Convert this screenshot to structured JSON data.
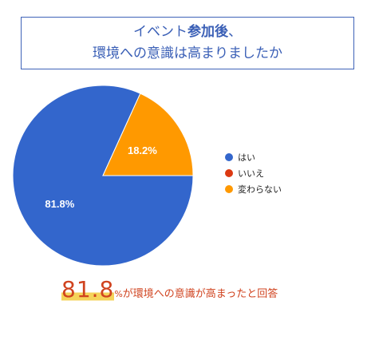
{
  "title": {
    "line1_part1": "イベント",
    "line1_bold": "参加後",
    "line1_part2": "、",
    "line2": "環境への意識は高まりましたか"
  },
  "chart_data": {
    "type": "pie",
    "categories": [
      "はい",
      "いいえ",
      "変わらない"
    ],
    "values": [
      81.8,
      0,
      18.2
    ],
    "data_labels": [
      "81.8%",
      "",
      "18.2%"
    ],
    "colors": [
      "#3366cc",
      "#dc3912",
      "#ff9900"
    ],
    "legend_position": "right"
  },
  "footer": {
    "big_value": "81.8",
    "percent_sign": "%",
    "rest_text": "が環境への意識が高まったと回答"
  }
}
